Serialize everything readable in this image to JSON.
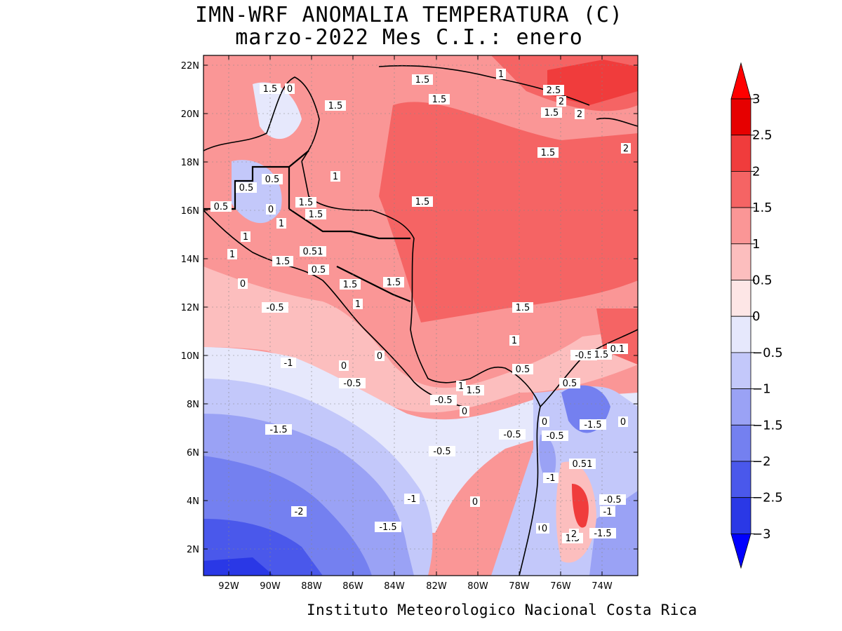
{
  "title": {
    "line1": "IMN-WRF  ANOMALIA TEMPERATURA (C)",
    "line2": "marzo-2022 Mes C.I.: enero"
  },
  "credit": "Instituto Meteorologico Nacional Costa Rica",
  "axes": {
    "latitude_labels": [
      "22N",
      "20N",
      "18N",
      "16N",
      "14N",
      "12N",
      "10N",
      "8N",
      "6N",
      "4N",
      "2N"
    ],
    "longitude_labels": [
      "92W",
      "90W",
      "88W",
      "86W",
      "84W",
      "82W",
      "80W",
      "78W",
      "76W",
      "74W"
    ]
  },
  "colorbar": {
    "levels": [
      "3",
      "2.5",
      "2",
      "1.5",
      "1",
      "0.5",
      "0",
      "-0.5",
      "-1",
      "-1.5",
      "-2",
      "-2.5",
      "-3"
    ],
    "colors": [
      "#e60000",
      "#f03c3c",
      "#f56464",
      "#fa9696",
      "#fcbebe",
      "#fde6e6",
      "#e6e8fc",
      "#c3c8fa",
      "#9aa2f5",
      "#7480f0",
      "#4a58eb",
      "#2a38e6",
      "#0f1ee6"
    ],
    "top_color": "#ff0000",
    "bottom_color": "#0000ff"
  },
  "contour_labels": [
    {
      "text": "1.5"
    },
    {
      "text": "0"
    },
    {
      "text": "1.5"
    },
    {
      "text": "1.5"
    },
    {
      "text": "1"
    },
    {
      "text": "1.5"
    },
    {
      "text": "2.5"
    },
    {
      "text": "2"
    },
    {
      "text": "1.5"
    },
    {
      "text": "2"
    },
    {
      "text": "1.5"
    },
    {
      "text": "2"
    },
    {
      "text": "1"
    },
    {
      "text": "0.5"
    },
    {
      "text": "0.5"
    },
    {
      "text": "0.5"
    },
    {
      "text": "0"
    },
    {
      "text": "1.5"
    },
    {
      "text": "1.5"
    },
    {
      "text": "1.5"
    },
    {
      "text": "1"
    },
    {
      "text": "1"
    },
    {
      "text": "0.51"
    },
    {
      "text": "1"
    },
    {
      "text": "1.5"
    },
    {
      "text": "0.5"
    },
    {
      "text": "0"
    },
    {
      "text": "1.5"
    },
    {
      "text": "1.5"
    },
    {
      "text": "-0.5"
    },
    {
      "text": "1"
    },
    {
      "text": "1.5"
    },
    {
      "text": "1"
    },
    {
      "text": "-1"
    },
    {
      "text": "0"
    },
    {
      "text": "-0.5"
    },
    {
      "text": "0"
    },
    {
      "text": "0.5"
    },
    {
      "text": "-0.5"
    },
    {
      "text": "1.5"
    },
    {
      "text": "0.1"
    },
    {
      "text": "0.5"
    },
    {
      "text": "1"
    },
    {
      "text": "1.5"
    },
    {
      "text": "-0.5"
    },
    {
      "text": "0"
    },
    {
      "text": "0"
    },
    {
      "text": "-1.5"
    },
    {
      "text": "0"
    },
    {
      "text": "-1.5"
    },
    {
      "text": "-0.5"
    },
    {
      "text": "-0.5"
    },
    {
      "text": "-0.5"
    },
    {
      "text": "0.51"
    },
    {
      "text": "-1"
    },
    {
      "text": "0"
    },
    {
      "text": "-1"
    },
    {
      "text": "0"
    },
    {
      "text": "-0.5"
    },
    {
      "text": "-1"
    },
    {
      "text": "-2"
    },
    {
      "text": "-1.5"
    },
    {
      "text": "0"
    },
    {
      "text": "1.5"
    },
    {
      "text": "2"
    },
    {
      "text": "-1.5"
    }
  ]
}
